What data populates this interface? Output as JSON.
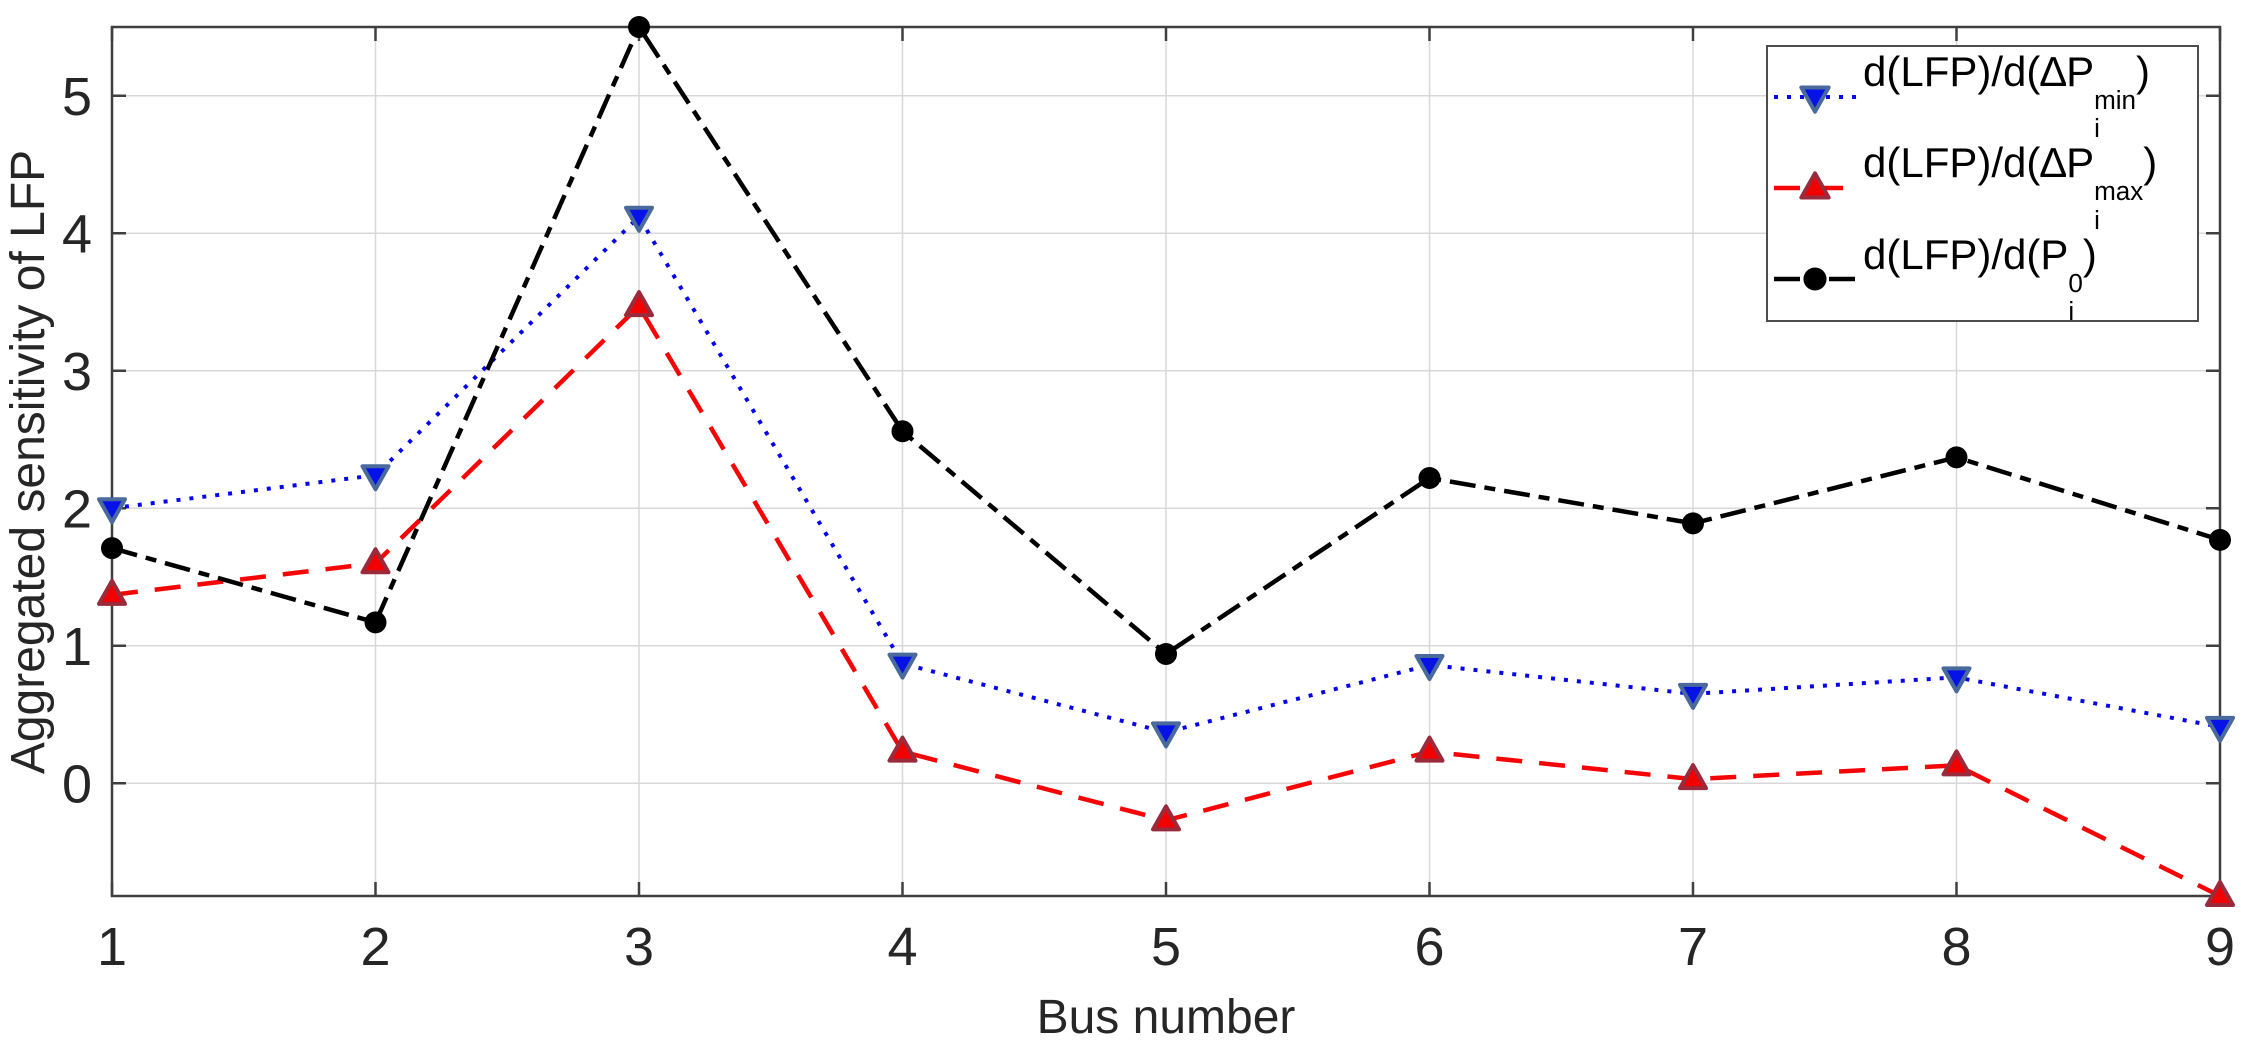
{
  "chart_data": {
    "type": "line",
    "title": "",
    "xlabel": "Bus number",
    "ylabel": "Aggregated sensitivity of LFP",
    "categories": [
      1,
      2,
      3,
      4,
      5,
      6,
      7,
      8,
      9
    ],
    "y_ticks": [
      0,
      1,
      2,
      3,
      4,
      5
    ],
    "xlim": [
      1,
      9
    ],
    "ylim": [
      -0.82,
      5.5
    ],
    "grid": true,
    "legend_position": "top-right",
    "axis_color": "#3f3f3f",
    "grid_color": "#d8d8d8",
    "text_color": "#262626",
    "legend_border_color": "#4d4d4d",
    "background_color": "#ffffff",
    "series": [
      {
        "id": "dlfp-dpmin",
        "label": {
          "prefix": "d(LFP)/d(∆P",
          "sup": "min",
          "sub": "i",
          "suffix": ")"
        },
        "color": "#0505e8",
        "line_style": "dotted",
        "line_width": 4,
        "marker": "triangle-down",
        "marker_fill": "#0713e6",
        "marker_edge": "#4a6a9c",
        "values": [
          2.0,
          2.24,
          4.12,
          0.87,
          0.37,
          0.86,
          0.65,
          0.77,
          0.41
        ]
      },
      {
        "id": "dlfp-dpmax",
        "label": {
          "prefix": "d(LFP)/d(∆P",
          "sup": "max",
          "sub": "i",
          "suffix": ")"
        },
        "color": "#f50505",
        "line_style": "dashed",
        "line_width": 4.5,
        "marker": "triangle-up",
        "marker_fill": "#f20000",
        "marker_edge": "#992b3d",
        "values": [
          1.37,
          1.6,
          3.47,
          0.23,
          -0.27,
          0.23,
          0.03,
          0.13,
          -0.82
        ]
      },
      {
        "id": "dlfp-dp0",
        "label": {
          "prefix": "d(LFP)/d(P",
          "sup": "0",
          "sub": "i",
          "suffix": ")"
        },
        "color": "#000000",
        "line_style": "dash-dot",
        "line_width": 4.5,
        "marker": "circle",
        "marker_fill": "#000000",
        "marker_edge": "#000000",
        "values": [
          1.71,
          1.17,
          5.5,
          2.56,
          0.94,
          2.22,
          1.89,
          2.37,
          1.77
        ]
      }
    ]
  }
}
